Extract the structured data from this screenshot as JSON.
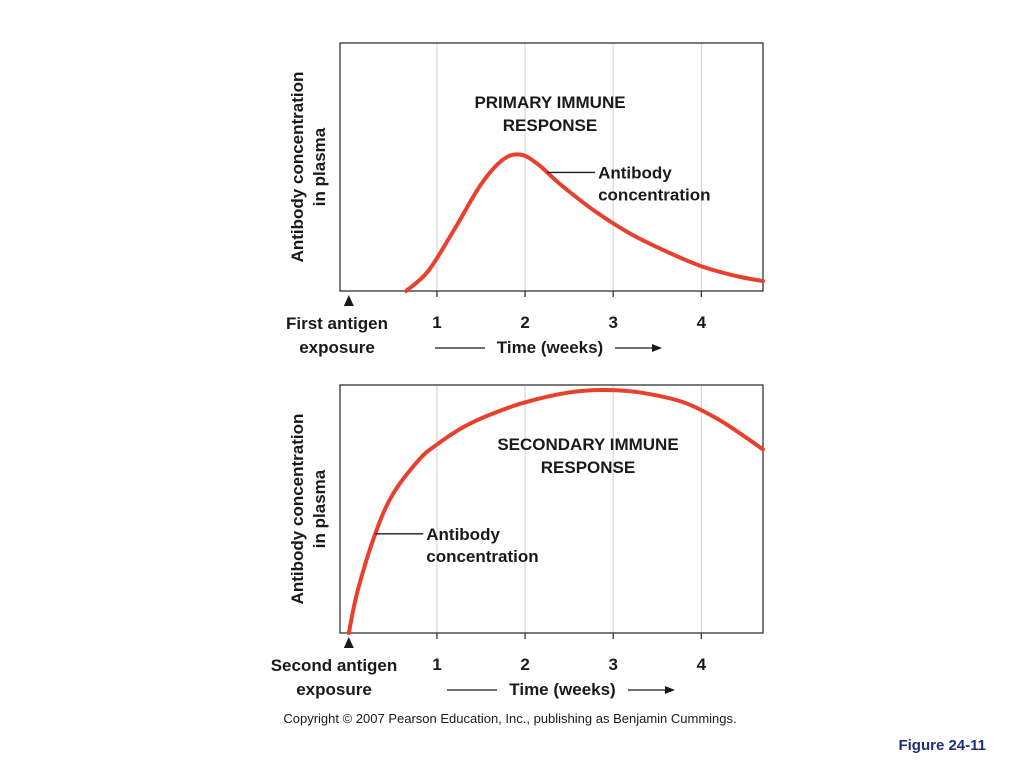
{
  "chart_data": [
    {
      "type": "line",
      "title_lines": [
        "PRIMARY IMMUNE",
        "RESPONSE"
      ],
      "ylabel_lines": [
        "Antibody concentration",
        "in plasma"
      ],
      "xlabel": "Time (weeks)",
      "x_ticks": [
        {
          "value": 1,
          "label": "1"
        },
        {
          "value": 2,
          "label": "2"
        },
        {
          "value": 3,
          "label": "3"
        },
        {
          "value": 4,
          "label": "4"
        }
      ],
      "xlim": [
        -0.1,
        4.7
      ],
      "ylim": [
        0,
        100
      ],
      "grid": "vertical",
      "exposure_label_lines": [
        "First antigen",
        "exposure"
      ],
      "exposure_x": 0,
      "series": [
        {
          "label_lines": [
            "Antibody",
            "concentration"
          ],
          "label_anchor_x": 2.25,
          "color": "#e8402c",
          "points": [
            [
              0.65,
              0
            ],
            [
              0.9,
              8
            ],
            [
              1.2,
              25
            ],
            [
              1.5,
              43
            ],
            [
              1.75,
              53
            ],
            [
              1.95,
              55
            ],
            [
              2.15,
              51
            ],
            [
              2.4,
              43
            ],
            [
              2.8,
              32
            ],
            [
              3.2,
              23
            ],
            [
              3.6,
              16
            ],
            [
              4.0,
              10
            ],
            [
              4.4,
              6
            ],
            [
              4.7,
              4
            ]
          ]
        }
      ]
    },
    {
      "type": "line",
      "title_lines": [
        "SECONDARY IMMUNE",
        "RESPONSE"
      ],
      "ylabel_lines": [
        "Antibody concentration",
        "in plasma"
      ],
      "xlabel": "Time (weeks)",
      "x_ticks": [
        {
          "value": 1,
          "label": "1"
        },
        {
          "value": 2,
          "label": "2"
        },
        {
          "value": 3,
          "label": "3"
        },
        {
          "value": 4,
          "label": "4"
        }
      ],
      "xlim": [
        -0.1,
        4.7
      ],
      "ylim": [
        0,
        100
      ],
      "grid": "vertical",
      "exposure_label_lines": [
        "Second antigen",
        "exposure"
      ],
      "exposure_x": 0,
      "series": [
        {
          "label_lines": [
            "Antibody",
            "concentration"
          ],
          "label_anchor_x": 0.3,
          "color": "#e8402c",
          "points": [
            [
              0,
              0
            ],
            [
              0.1,
              17
            ],
            [
              0.3,
              40
            ],
            [
              0.5,
              56
            ],
            [
              0.8,
              70
            ],
            [
              1.0,
              76
            ],
            [
              1.3,
              83
            ],
            [
              1.6,
              88
            ],
            [
              2.0,
              93
            ],
            [
              2.5,
              97
            ],
            [
              2.9,
              98
            ],
            [
              3.3,
              97
            ],
            [
              3.8,
              93
            ],
            [
              4.2,
              86
            ],
            [
              4.5,
              79
            ],
            [
              4.7,
              74
            ]
          ]
        }
      ]
    }
  ],
  "copyright": "Copyright © 2007 Pearson Education, Inc., publishing as Benjamin Cummings.",
  "figure_label": "Figure 24-11"
}
